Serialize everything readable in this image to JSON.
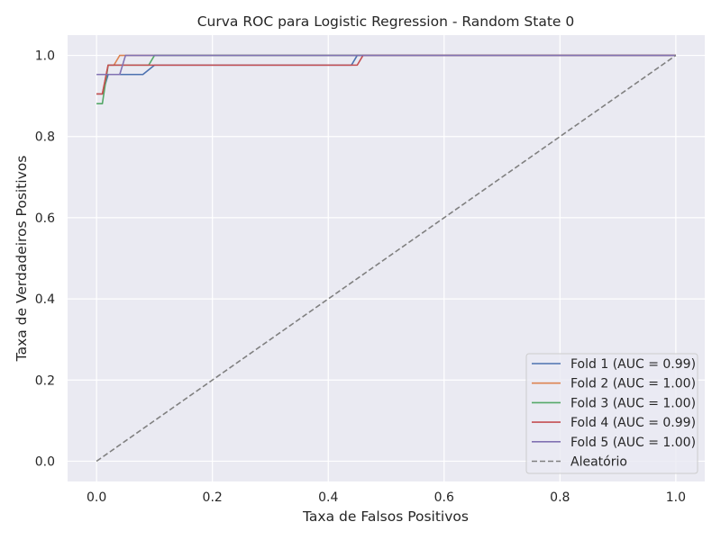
{
  "chart_data": {
    "type": "line",
    "title": "Curva ROC para Logistic Regression - Random State 0",
    "xlabel": "Taxa de Falsos Positivos",
    "ylabel": "Taxa de Verdadeiros Positivos",
    "xlim": [
      -0.05,
      1.05
    ],
    "ylim": [
      -0.05,
      1.05
    ],
    "xticks": [
      0.0,
      0.2,
      0.4,
      0.6,
      0.8,
      1.0
    ],
    "yticks": [
      0.0,
      0.2,
      0.4,
      0.6,
      0.8,
      1.0
    ],
    "xtick_labels": [
      "0.0",
      "0.2",
      "0.4",
      "0.6",
      "0.8",
      "1.0"
    ],
    "ytick_labels": [
      "0.0",
      "0.2",
      "0.4",
      "0.6",
      "0.8",
      "1.0"
    ],
    "grid": true,
    "legend_position": "lower-right",
    "background": "#eaeaf2",
    "series": [
      {
        "name": "Fold 1 (AUC = 0.99)",
        "color": "#4c72b0",
        "dashed": false,
        "x": [
          0.0,
          0.01,
          0.02,
          0.08,
          0.1,
          0.44,
          0.45,
          1.0
        ],
        "y": [
          0.905,
          0.905,
          0.953,
          0.953,
          0.976,
          0.976,
          1.0,
          1.0
        ]
      },
      {
        "name": "Fold 2 (AUC = 1.00)",
        "color": "#dd8452",
        "dashed": false,
        "x": [
          0.0,
          0.01,
          0.02,
          0.03,
          0.04,
          1.0
        ],
        "y": [
          0.905,
          0.905,
          0.976,
          0.976,
          1.0,
          1.0
        ]
      },
      {
        "name": "Fold 3 (AUC = 1.00)",
        "color": "#55a868",
        "dashed": false,
        "x": [
          0.0,
          0.01,
          0.02,
          0.09,
          0.1,
          1.0
        ],
        "y": [
          0.881,
          0.881,
          0.976,
          0.976,
          1.0,
          1.0
        ]
      },
      {
        "name": "Fold 4 (AUC = 0.99)",
        "color": "#c44e52",
        "dashed": false,
        "x": [
          0.0,
          0.01,
          0.02,
          0.45,
          0.46,
          1.0
        ],
        "y": [
          0.905,
          0.905,
          0.976,
          0.976,
          1.0,
          1.0
        ]
      },
      {
        "name": "Fold 5 (AUC = 1.00)",
        "color": "#8172b3",
        "dashed": false,
        "x": [
          0.0,
          0.04,
          0.05,
          1.0
        ],
        "y": [
          0.953,
          0.953,
          1.0,
          1.0
        ]
      },
      {
        "name": "Aleatório",
        "color": "#808080",
        "dashed": true,
        "x": [
          0.0,
          1.0
        ],
        "y": [
          0.0,
          1.0
        ]
      }
    ]
  }
}
